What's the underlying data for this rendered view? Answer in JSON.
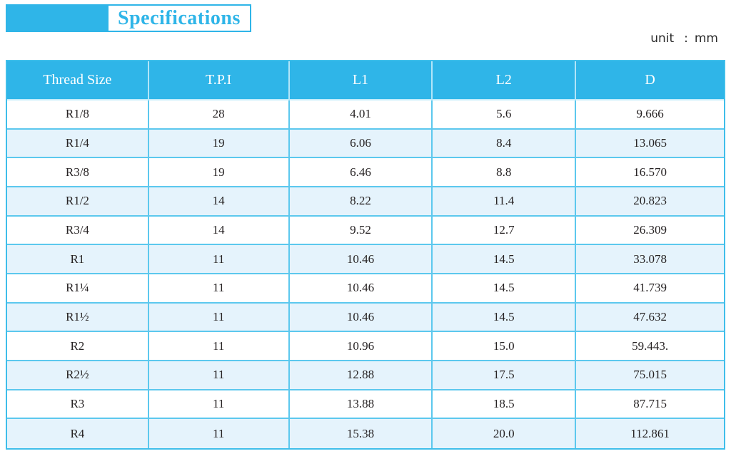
{
  "title": {
    "label": "Specifications"
  },
  "unit_note": {
    "label": "unit",
    "colon": ":",
    "value": "mm"
  },
  "colors": {
    "accent_cyan": "#2fb5e8",
    "row_alt_blue": "#e5f3fc",
    "cell_border": "#5cc8ee",
    "header_text": "#ffffff",
    "body_text": "#262223"
  },
  "table": {
    "columns": [
      "Thread Size",
      "T.P.I",
      "L1",
      "L2",
      "D"
    ],
    "rows": [
      [
        "R1/8",
        "28",
        "4.01",
        "5.6",
        "9.666"
      ],
      [
        "R1/4",
        "19",
        "6.06",
        "8.4",
        "13.065"
      ],
      [
        "R3/8",
        "19",
        "6.46",
        "8.8",
        "16.570"
      ],
      [
        "R1/2",
        "14",
        "8.22",
        "11.4",
        "20.823"
      ],
      [
        "R3/4",
        "14",
        "9.52",
        "12.7",
        "26.309"
      ],
      [
        "R1",
        "11",
        "10.46",
        "14.5",
        "33.078"
      ],
      [
        "R1¼",
        "11",
        "10.46",
        "14.5",
        "41.739"
      ],
      [
        "R1½",
        "11",
        "10.46",
        "14.5",
        "47.632"
      ],
      [
        "R2",
        "11",
        "10.96",
        "15.0",
        "59.443."
      ],
      [
        "R2½",
        "11",
        "12.88",
        "17.5",
        "75.015"
      ],
      [
        "R3",
        "11",
        "13.88",
        "18.5",
        "87.715"
      ],
      [
        "R4",
        "11",
        "15.38",
        "20.0",
        "112.861"
      ]
    ]
  }
}
